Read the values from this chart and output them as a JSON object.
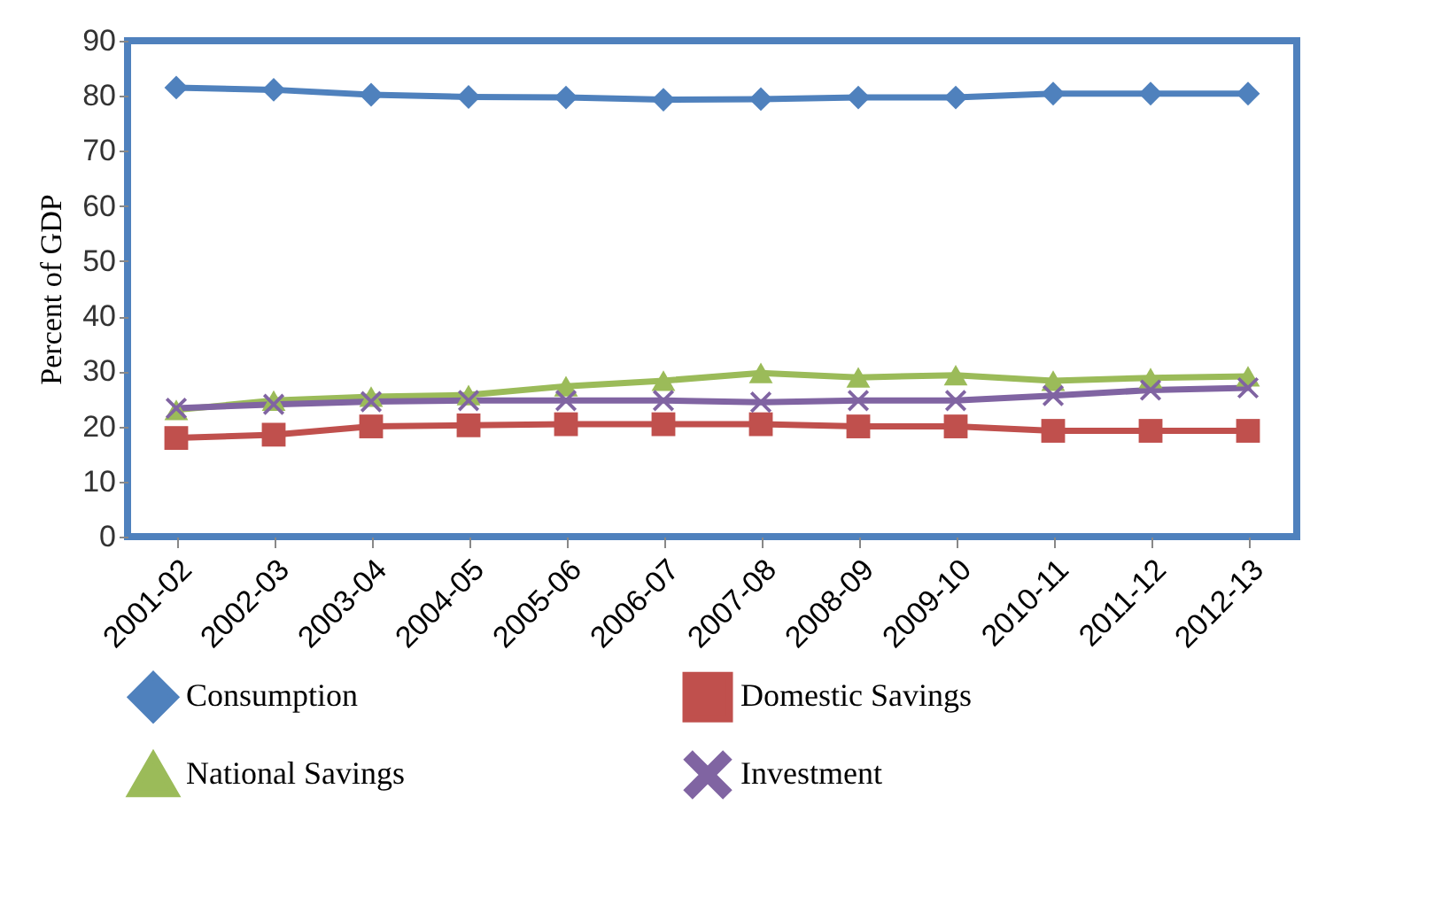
{
  "chart_data": {
    "type": "line",
    "ylabel": "Percent of GDP",
    "categories": [
      "2001-02",
      "2002-03",
      "2003-04",
      "2004-05",
      "2005-06",
      "2006-07",
      "2007-08",
      "2008-09",
      "2009-10",
      "2010-11",
      "2011-12",
      "2012-13"
    ],
    "series": [
      {
        "name": "Consumption",
        "color": "#4f81bd",
        "marker": "diamond",
        "values": [
          81.5,
          81.1,
          80.2,
          79.8,
          79.7,
          79.3,
          79.4,
          79.7,
          79.7,
          80.4,
          80.4,
          80.4
        ]
      },
      {
        "name": "Domestic Savings",
        "color": "#c0504d",
        "marker": "square",
        "values": [
          17.9,
          18.5,
          20.0,
          20.2,
          20.4,
          20.4,
          20.4,
          20.0,
          20.0,
          19.2,
          19.2,
          19.2
        ]
      },
      {
        "name": "National Savings",
        "color": "#9bbb59",
        "marker": "triangle",
        "values": [
          23.0,
          24.7,
          25.4,
          25.7,
          27.3,
          28.3,
          29.7,
          28.9,
          29.3,
          28.3,
          28.8,
          29.1
        ]
      },
      {
        "name": "Investment",
        "color": "#8064a2",
        "marker": "cross",
        "values": [
          23.3,
          24.0,
          24.5,
          24.7,
          24.7,
          24.7,
          24.4,
          24.7,
          24.7,
          25.6,
          26.6,
          27.0
        ]
      }
    ],
    "ylim": [
      0,
      90
    ],
    "yticks": [
      0,
      10,
      20,
      30,
      40,
      50,
      60,
      70,
      80,
      90
    ],
    "grid": false,
    "legend": "bottom",
    "line_style": "solid"
  }
}
